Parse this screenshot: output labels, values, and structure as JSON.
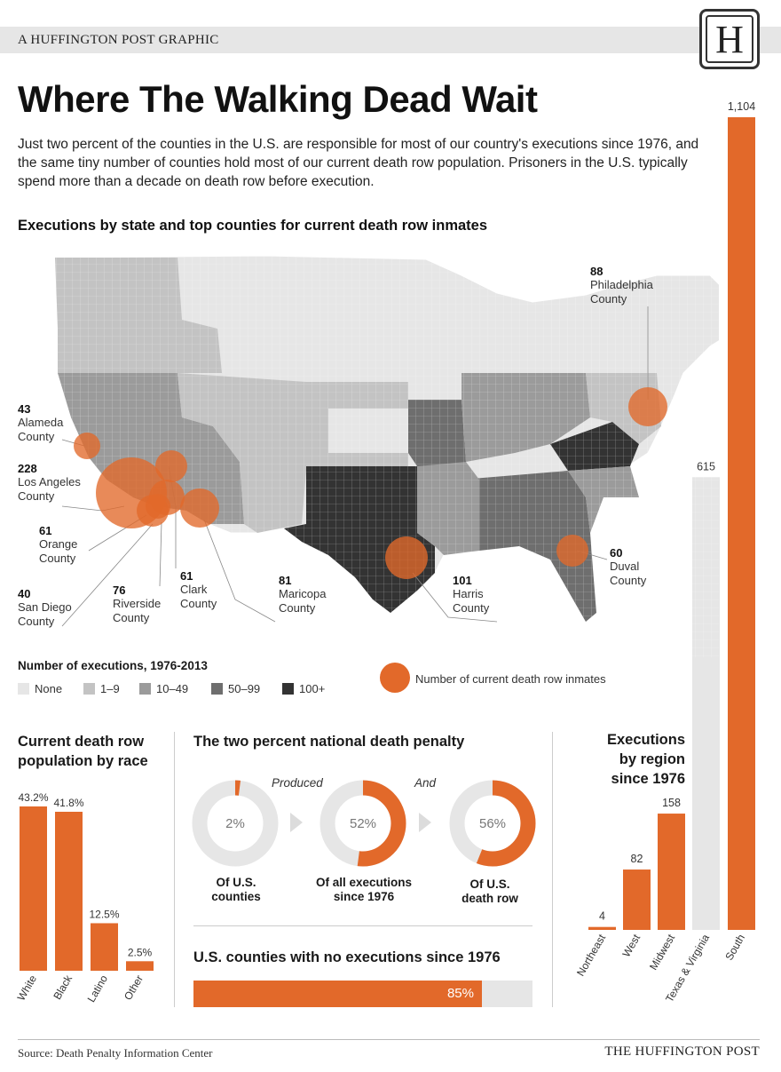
{
  "header": {
    "tag": "A HUFFINGTON POST GRAPHIC",
    "logo_letter": "H",
    "title": "Where The Walking Dead Wait",
    "intro": "Just two percent of the counties in the U.S. are responsible for most of our country's executions since 1976, and the same tiny number of counties hold most of our current death row population. Prisoners in the U.S. typically spend more than a decade on death row before execution."
  },
  "map": {
    "title": "Executions by state and top counties for current death row inmates",
    "callouts": [
      {
        "num": "88",
        "label1": "Philadelphia",
        "label2": "County"
      },
      {
        "num": "43",
        "label1": "Alameda",
        "label2": "County"
      },
      {
        "num": "228",
        "label1": "Los Angeles",
        "label2": "County"
      },
      {
        "num": "61",
        "label1": "Orange",
        "label2": "County"
      },
      {
        "num": "40",
        "label1": "San Diego",
        "label2": "County"
      },
      {
        "num": "76",
        "label1": "Riverside",
        "label2": "County"
      },
      {
        "num": "61",
        "label1": "Clark",
        "label2": "County"
      },
      {
        "num": "81",
        "label1": "Maricopa",
        "label2": "County"
      },
      {
        "num": "101",
        "label1": "Harris",
        "label2": "County"
      },
      {
        "num": "60",
        "label1": "Duval",
        "label2": "County"
      }
    ],
    "legend": {
      "title": "Number of executions, 1976-2013",
      "items": [
        {
          "label": "None",
          "color": "#e6e6e6"
        },
        {
          "label": "1–9",
          "color": "#c3c3c3"
        },
        {
          "label": "10–49",
          "color": "#9b9b9b"
        },
        {
          "label": "50–99",
          "color": "#6e6e6e"
        },
        {
          "label": "100+",
          "color": "#333333"
        }
      ],
      "circle_label": "Number of current death row inmates",
      "circle_color": "#e2692a"
    }
  },
  "race": {
    "title_line1": "Current death row",
    "title_line2": "population by race"
  },
  "two_percent": {
    "title": "The two percent national death penalty",
    "connector1": "Produced",
    "connector2": "And",
    "donuts": [
      {
        "value_label": "2%",
        "label1": "Of U.S.",
        "label2": "counties"
      },
      {
        "value_label": "52%",
        "label1": "Of all executions",
        "label2": "since 1976"
      },
      {
        "value_label": "56%",
        "label1": "Of U.S.",
        "label2": "death row"
      }
    ],
    "no_exec_title": "U.S. counties with no executions since 1976",
    "no_exec_label": "85%"
  },
  "region": {
    "title_line1": "Executions",
    "title_line2": "by region",
    "title_line3": "since 1976"
  },
  "footer": {
    "source": "Source: Death Penalty Information Center",
    "brand": "THE HUFFINGTON POST"
  },
  "chart_data": [
    {
      "type": "bar",
      "title": "Current death row population by race",
      "categories": [
        "White",
        "Black",
        "Latino",
        "Other"
      ],
      "values": [
        43.2,
        41.8,
        12.5,
        2.5
      ],
      "value_labels": [
        "43.2%",
        "41.8%",
        "12.5%",
        "2.5%"
      ],
      "color": "#e2692a"
    },
    {
      "type": "pie",
      "title": "The two percent national death penalty",
      "series": [
        {
          "name": "Of U.S. counties",
          "values": [
            2
          ]
        },
        {
          "name": "Of all executions since 1976",
          "values": [
            52
          ]
        },
        {
          "name": "Of U.S. death row",
          "values": [
            56
          ]
        }
      ]
    },
    {
      "type": "bar",
      "title": "U.S. counties with no executions since 1976",
      "categories": [
        "U.S. counties with no executions since 1976"
      ],
      "values": [
        85
      ]
    },
    {
      "type": "bar",
      "title": "Executions by region since 1976",
      "categories": [
        "Northeast",
        "West",
        "Midwest",
        "Texas & Virginia",
        "South"
      ],
      "values": [
        4,
        82,
        158,
        615,
        1104
      ],
      "value_labels": [
        "4",
        "82",
        "158",
        "615",
        "1,104"
      ],
      "colors": [
        "#e2692a",
        "#e2692a",
        "#e2692a",
        "#e6e6e6",
        "#e2692a"
      ]
    }
  ]
}
